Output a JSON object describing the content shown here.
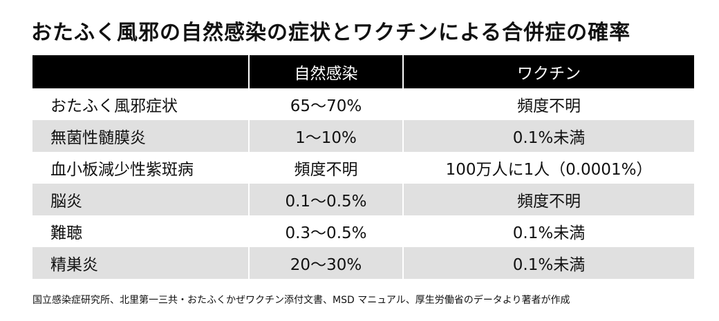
{
  "title": "おたふく風邪の自然感染の症状とワクチンによる合併症の確率",
  "table": {
    "headers": [
      "",
      "自然感染",
      "ワクチン"
    ],
    "rows": [
      [
        "おたふく風邪症状",
        "65〜70%",
        "頻度不明"
      ],
      [
        "無菌性髄膜炎",
        "1〜10%",
        "0.1%未満"
      ],
      [
        "血小板減少性紫斑病",
        "頻度不明",
        "100万人に1人（0.0001%）"
      ],
      [
        "脳炎",
        "0.1〜0.5%",
        "頻度不明"
      ],
      [
        "難聴",
        "0.3〜0.5%",
        "0.1%未満"
      ],
      [
        "精巣炎",
        "20〜30%",
        "0.1%未満"
      ]
    ]
  },
  "source": "国立感染症研究所、北里第一三共・おたふくかぜワクチン添付文書、MSD マニュアル、厚生労働省のデータより著者が作成",
  "colors": {
    "header_bg": "#000000",
    "header_text": "#ffffff",
    "stripe": "#e0e0e0"
  }
}
